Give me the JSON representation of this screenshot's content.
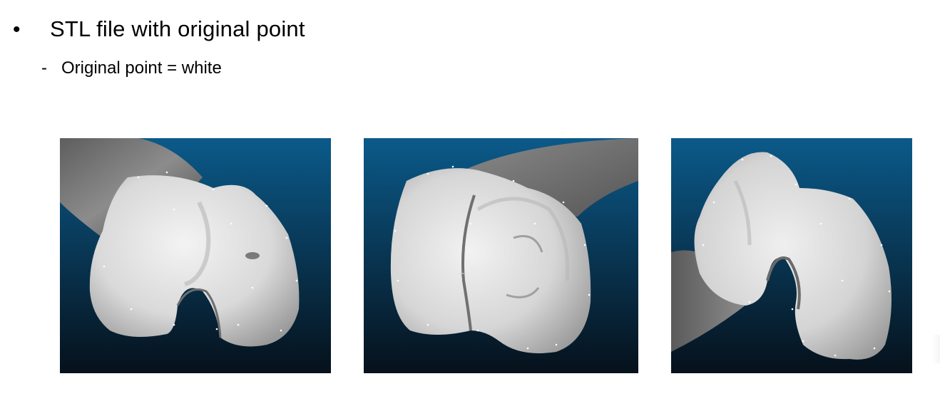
{
  "slide": {
    "bullet_symbol": "•",
    "heading": "STL file with original point",
    "sub_dash": "-",
    "sub_text": "Original point = white"
  },
  "views": [
    {
      "id": "view-1",
      "icon": "femur-condyle-front-view",
      "background_top": "#0b5a8a",
      "background_bottom": "#06111b",
      "bone_color": "#e4e4e4"
    },
    {
      "id": "view-2",
      "icon": "femur-condyle-oblique-view",
      "background_top": "#0b5a8a",
      "background_bottom": "#06111b",
      "bone_color": "#e4e4e4"
    },
    {
      "id": "view-3",
      "icon": "femur-condyle-side-view",
      "background_top": "#0b5a8a",
      "background_bottom": "#06111b",
      "bone_color": "#e4e4e4"
    }
  ]
}
